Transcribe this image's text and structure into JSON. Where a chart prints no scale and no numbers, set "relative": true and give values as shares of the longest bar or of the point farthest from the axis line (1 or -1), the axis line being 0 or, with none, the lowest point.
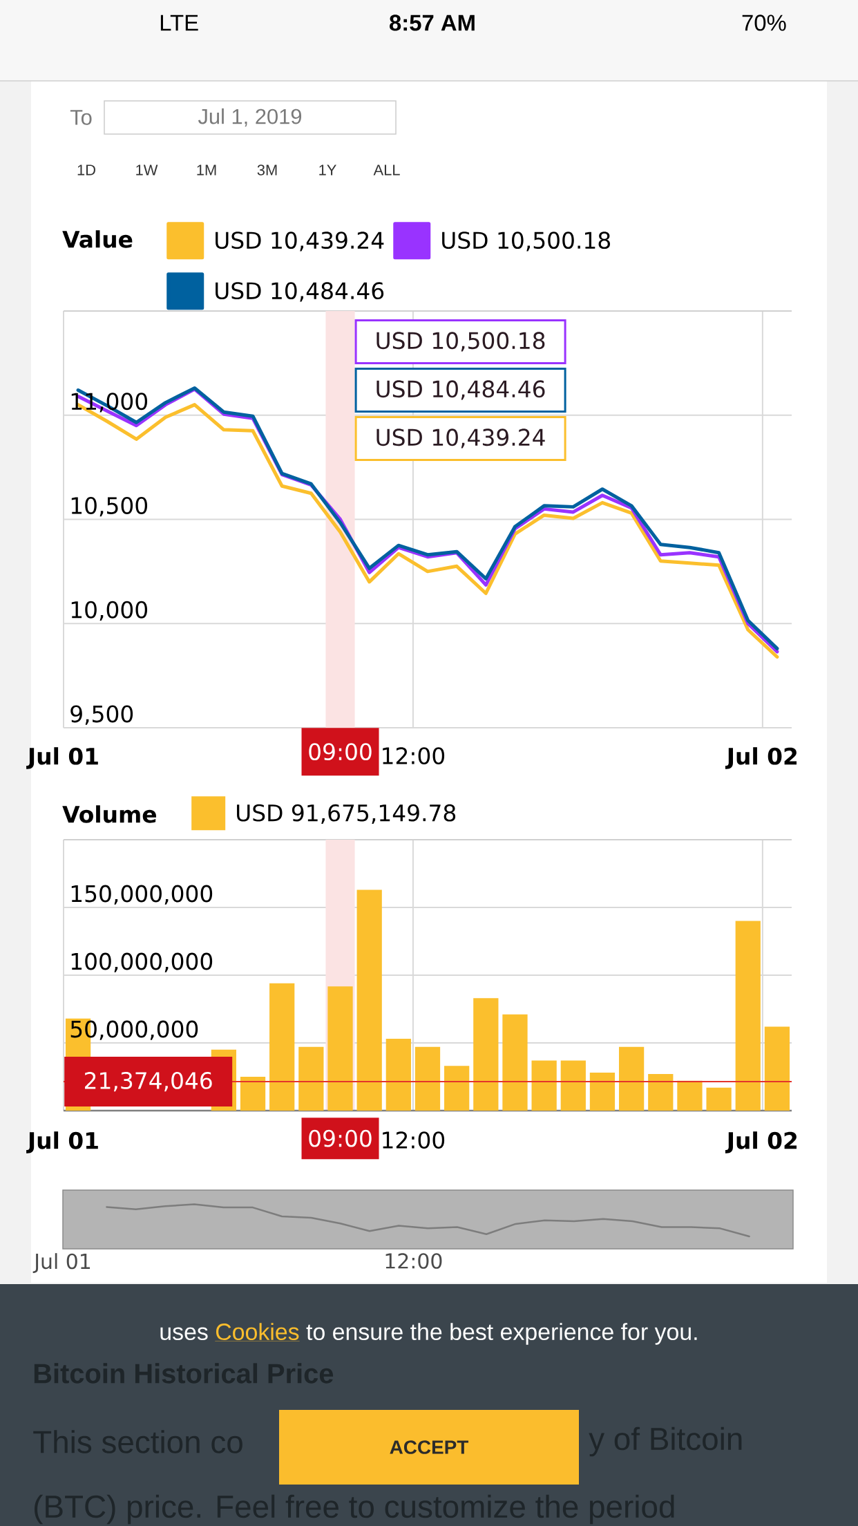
{
  "chart_data": [
    {
      "type": "other",
      "annotations": [
        "LTE",
        "8:57 AM",
        "70%",
        "To",
        "Jul 1, 2019",
        "1D",
        "1W",
        "1M",
        "3M",
        "1Y",
        "ALL"
      ]
    },
    {
      "type": "line",
      "legend_title": "Value",
      "x": [
        "2019-07-01T00:30",
        "2019-07-01T01:30",
        "2019-07-01T02:30",
        "2019-07-01T03:30",
        "2019-07-01T04:30",
        "2019-07-01T05:30",
        "2019-07-01T06:30",
        "2019-07-01T07:30",
        "2019-07-01T08:30",
        "2019-07-01T09:30",
        "2019-07-01T10:30",
        "2019-07-01T11:30",
        "2019-07-01T12:30",
        "2019-07-01T13:30",
        "2019-07-01T14:30",
        "2019-07-01T15:30",
        "2019-07-01T16:30",
        "2019-07-01T17:30",
        "2019-07-01T18:30",
        "2019-07-01T19:30",
        "2019-07-01T20:30",
        "2019-07-01T21:30",
        "2019-07-01T22:30",
        "2019-07-01T23:30",
        "2019-07-02T00:30"
      ],
      "series": [
        {
          "name": "USD 10,439.24",
          "color": "#fbbf2d",
          "values": [
            11050,
            10970,
            10885,
            10990,
            11050,
            10930,
            10925,
            10660,
            10625,
            10439.24,
            10200,
            10335,
            10250,
            10275,
            10145,
            10430,
            10520,
            10505,
            10580,
            10530,
            10300,
            10290,
            10280,
            9970,
            9840
          ]
        },
        {
          "name": "USD 10,500.18",
          "color": "#9933ff",
          "values": [
            11090,
            11020,
            10950,
            11050,
            11125,
            11005,
            10985,
            10715,
            10665,
            10500.18,
            10245,
            10365,
            10320,
            10340,
            10185,
            10455,
            10550,
            10535,
            10615,
            10555,
            10330,
            10340,
            10320,
            10000,
            9865
          ]
        },
        {
          "name": "USD 10,484.46",
          "color": "#00619f",
          "values": [
            11120,
            11045,
            10965,
            11060,
            11130,
            11015,
            10995,
            10720,
            10670,
            10484.46,
            10265,
            10375,
            10330,
            10345,
            10215,
            10465,
            10565,
            10560,
            10645,
            10565,
            10380,
            10365,
            10340,
            10015,
            9880
          ]
        }
      ],
      "xlim": [
        "2019-07-01T00:00",
        "2019-07-02T01:00"
      ],
      "xticks": [
        {
          "value": "2019-07-01T00:00",
          "label": "Jul 01"
        },
        {
          "value": "2019-07-01T12:00",
          "label": "12:00"
        },
        {
          "value": "2019-07-02T00:00",
          "label": "Jul 02"
        }
      ],
      "ylim": [
        9500,
        11500
      ],
      "yticks": [
        {
          "value": 9500,
          "label": "9,500"
        },
        {
          "value": 10000,
          "label": "10,000"
        },
        {
          "value": 10500,
          "label": "10,500"
        },
        {
          "value": 11000,
          "label": "11,000"
        }
      ],
      "grid": true,
      "legend": "top left",
      "bands": [
        {
          "axis": "x",
          "from": "2019-07-01T09:00",
          "to": "2019-07-01T10:00",
          "label": "09:00",
          "color": "#fbe3e3"
        }
      ],
      "annotations": [
        "USD 10,500.18",
        "USD 10,484.46",
        "USD 10,439.24"
      ]
    },
    {
      "type": "bar",
      "legend_title": "Volume",
      "x": [
        "2019-07-01T00:30",
        "2019-07-01T01:30",
        "2019-07-01T02:30",
        "2019-07-01T03:30",
        "2019-07-01T04:30",
        "2019-07-01T05:30",
        "2019-07-01T06:30",
        "2019-07-01T07:30",
        "2019-07-01T08:30",
        "2019-07-01T09:30",
        "2019-07-01T10:30",
        "2019-07-01T11:30",
        "2019-07-01T12:30",
        "2019-07-01T13:30",
        "2019-07-01T14:30",
        "2019-07-01T15:30",
        "2019-07-01T16:30",
        "2019-07-01T17:30",
        "2019-07-01T18:30",
        "2019-07-01T19:30",
        "2019-07-01T20:30",
        "2019-07-01T21:30",
        "2019-07-01T22:30",
        "2019-07-01T23:30",
        "2019-07-02T00:30"
      ],
      "series": [
        {
          "name": "USD 91,675,149.78",
          "color": "#fbbf2d",
          "values": [
            68000000,
            null,
            null,
            null,
            null,
            45000000,
            25000000,
            94000000,
            47000000,
            91675149.78,
            163000000,
            53000000,
            47000000,
            33000000,
            83000000,
            71000000,
            37000000,
            37000000,
            28000000,
            47000000,
            27000000,
            22000000,
            17000000,
            140000000,
            62000000
          ]
        }
      ],
      "xlim": [
        "2019-07-01T00:00",
        "2019-07-02T01:00"
      ],
      "xticks": [
        {
          "value": "2019-07-01T00:00",
          "label": "Jul 01"
        },
        {
          "value": "2019-07-01T12:00",
          "label": "12:00"
        },
        {
          "value": "2019-07-02T00:00",
          "label": "Jul 02"
        }
      ],
      "ylim": [
        0,
        200000000
      ],
      "yticks": [
        {
          "value": 50000000,
          "label": "50,000,000"
        },
        {
          "value": 100000000,
          "label": "100,000,000"
        },
        {
          "value": 150000000,
          "label": "150,000,000"
        }
      ],
      "grid": true,
      "legend": "top left",
      "bands": [
        {
          "axis": "x",
          "from": "2019-07-01T09:00",
          "to": "2019-07-01T10:00",
          "label": "09:00",
          "color": "#fbe3e3"
        }
      ],
      "ref_lines": [
        {
          "axis": "y",
          "value": 21374046,
          "label": "21,374,046",
          "color": "#e3342b"
        }
      ]
    },
    {
      "type": "line",
      "relative": true,
      "categories": [
        null,
        null,
        null,
        null,
        null,
        null,
        null,
        null,
        null,
        null,
        null,
        null,
        null,
        null,
        null,
        null,
        null,
        null,
        null,
        null,
        null,
        null,
        null,
        null,
        null
      ],
      "values": [
        null,
        0.94,
        0.89,
        0.96,
        1,
        0.93,
        0.93,
        0.73,
        0.7,
        0.57,
        0.4,
        0.52,
        0.46,
        0.49,
        0.33,
        0.56,
        0.64,
        0.62,
        0.67,
        0.62,
        0.49,
        0.49,
        0.46,
        0.28,
        null
      ],
      "color": "#7d7d7d",
      "annotations": [
        "Jul 01",
        "12:00"
      ]
    },
    {
      "type": "other",
      "annotations": [
        "Bitcoin Historical Price",
        "This section co",
        "y of Bitcoin",
        "(BTC) price. Feel free to customize the period",
        "uses",
        "Cookies",
        "to ensure the best experience for you.",
        "ACCEPT"
      ]
    }
  ]
}
